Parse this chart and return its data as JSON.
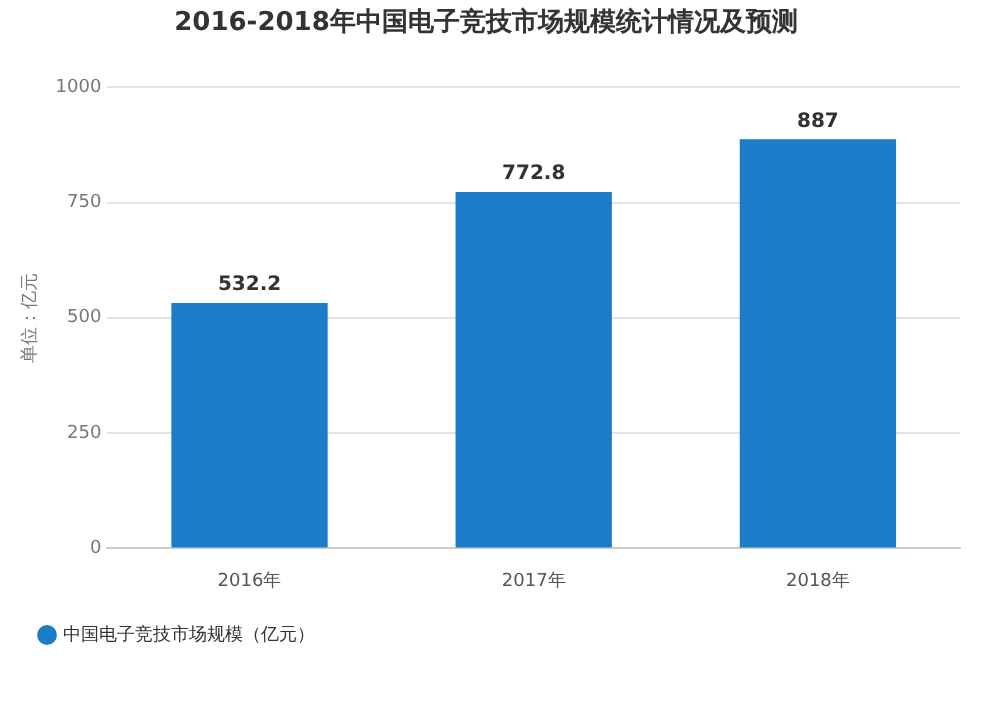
{
  "chart_data": {
    "type": "bar",
    "title": "2016-2018年中国电子竞技市场规模统计情况及预测",
    "ylabel": "单位：亿元",
    "categories": [
      "2016年",
      "2017年",
      "2018年"
    ],
    "series": [
      {
        "name": "中国电子竞技市场规模（亿元）",
        "color": "#1a7dc8",
        "values": [
          532.2,
          772.8,
          887
        ]
      }
    ],
    "ylim": [
      0,
      1000
    ],
    "yticks": [
      0,
      250,
      500,
      750,
      1000
    ],
    "grid": "y",
    "legend": "bottom",
    "data_labels": true
  }
}
